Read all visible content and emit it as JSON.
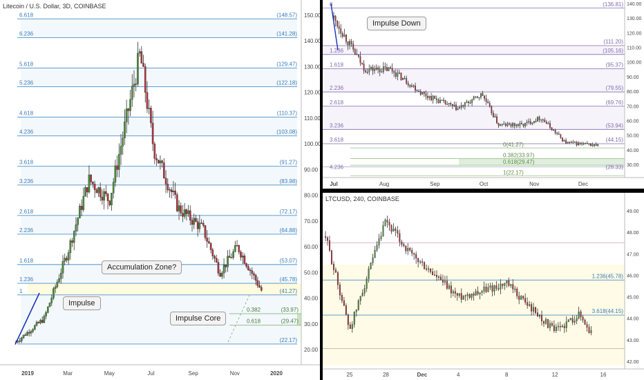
{
  "charts": {
    "left": {
      "title": "Litecoin / U.S. Dollar, 3D, COINBASE",
      "y_ticks": [
        20,
        30,
        40,
        50,
        60,
        70,
        80,
        90,
        100,
        110,
        120,
        130,
        140,
        150
      ],
      "x_labels": [
        "2019",
        "Mar",
        "May",
        "Jul",
        "Sep",
        "Nov",
        "2020"
      ],
      "fib_levels": [
        {
          "ratio": "6.618",
          "value": "148.57"
        },
        {
          "ratio": "6.236",
          "value": "141.28"
        },
        {
          "ratio": "5.618",
          "value": "129.47"
        },
        {
          "ratio": "5.236",
          "value": "122.18"
        },
        {
          "ratio": "4.618",
          "value": "110.37"
        },
        {
          "ratio": "4.236",
          "value": "103.08"
        },
        {
          "ratio": "3.618",
          "value": "91.27"
        },
        {
          "ratio": "3.236",
          "value": "83.98"
        },
        {
          "ratio": "2.618",
          "value": "72.17"
        },
        {
          "ratio": "2.236",
          "value": "64.88"
        },
        {
          "ratio": "1.618",
          "value": "53.07"
        },
        {
          "ratio": "1.236",
          "value": "45.78"
        },
        {
          "ratio": "1",
          "value": "41.27"
        },
        {
          "ratio": "0",
          "value": "22.17"
        }
      ],
      "retrace_levels": [
        {
          "ratio": "0.382",
          "value": "33.97"
        },
        {
          "ratio": "0.618",
          "value": "29.47"
        }
      ],
      "callouts": {
        "accumulation": "Accumulation Zone?",
        "impulse": "Impulse",
        "core": "Impulse Core"
      }
    },
    "top_right": {
      "y_ticks": [
        30,
        40,
        50,
        60,
        70,
        80,
        90,
        100,
        110,
        120,
        130,
        140
      ],
      "x_labels": [
        "Jul",
        "Aug",
        "Sep",
        "Oct",
        "Nov",
        "Dec"
      ],
      "fib_levels": [
        {
          "ratio": "0",
          "value": "136.81"
        },
        {
          "ratio": "",
          "value": "111.20"
        },
        {
          "ratio": "1.236",
          "value": "105.16"
        },
        {
          "ratio": "1.618",
          "value": "95.37"
        },
        {
          "ratio": "2.236",
          "value": "79.55"
        },
        {
          "ratio": "2.618",
          "value": "69.76"
        },
        {
          "ratio": "3.236",
          "value": "53.94"
        },
        {
          "ratio": "3.618",
          "value": "44.15"
        }
      ],
      "inner_levels": [
        {
          "ratio": "0",
          "value": "41.27"
        },
        {
          "ratio": "0.382",
          "value": "33.97"
        },
        {
          "ratio": "0.618",
          "value": "29.47"
        },
        {
          "ratio": "1",
          "value": "22.17"
        }
      ],
      "extra_level": {
        "ratio": "4.236",
        "value": "28.33"
      },
      "callout": "Impulse Down"
    },
    "bottom_right": {
      "title": "LTCUSD, 240, COINBASE",
      "y_ticks": [
        42.0,
        43.0,
        44.0,
        45.0,
        46.0,
        47.0,
        48.0,
        49.0
      ],
      "x_labels": [
        "25",
        "28",
        "Dec",
        "4",
        "8",
        "12",
        "16"
      ],
      "levels": [
        {
          "ratio": "1.236",
          "value": "45.78"
        },
        {
          "ratio": "3.618",
          "value": "44.15"
        }
      ]
    }
  },
  "chart_data": [
    {
      "type": "candlestick",
      "title": "Litecoin / U.S. Dollar, 3D, COINBASE",
      "x_range": [
        "2018-12",
        "2020-01"
      ],
      "ylim": [
        15,
        153
      ],
      "key_points": [
        {
          "date": "2018-12-15",
          "price": 23
        },
        {
          "date": "2019-01-25",
          "price": 32
        },
        {
          "date": "2019-03-01",
          "price": 58
        },
        {
          "date": "2019-04-01",
          "price": 86
        },
        {
          "date": "2019-05-01",
          "price": 78
        },
        {
          "date": "2019-06-15",
          "price": 135
        },
        {
          "date": "2019-07-05",
          "price": 98
        },
        {
          "date": "2019-08-10",
          "price": 75
        },
        {
          "date": "2019-09-15",
          "price": 67
        },
        {
          "date": "2019-10-10",
          "price": 50
        },
        {
          "date": "2019-11-05",
          "price": 60
        },
        {
          "date": "2019-12-10",
          "price": 43
        }
      ]
    },
    {
      "type": "candlestick",
      "x_range": [
        "2019-07",
        "2019-12"
      ],
      "ylim": [
        22,
        143
      ],
      "key_points": [
        {
          "date": "2019-07-01",
          "price": 130
        },
        {
          "date": "2019-07-20",
          "price": 95
        },
        {
          "date": "2019-08-05",
          "price": 95
        },
        {
          "date": "2019-08-25",
          "price": 78
        },
        {
          "date": "2019-09-15",
          "price": 68
        },
        {
          "date": "2019-09-30",
          "price": 78
        },
        {
          "date": "2019-10-10",
          "price": 57
        },
        {
          "date": "2019-10-25",
          "price": 57
        },
        {
          "date": "2019-11-05",
          "price": 62
        },
        {
          "date": "2019-11-20",
          "price": 45
        },
        {
          "date": "2019-12-10",
          "price": 43
        }
      ]
    },
    {
      "type": "candlestick",
      "title": "LTCUSD, 240, COINBASE",
      "x_range": [
        "2019-11-23",
        "2019-12-16"
      ],
      "ylim": [
        41.7,
        49.9
      ],
      "key_points": [
        {
          "date": "2019-11-23",
          "price": 47.8
        },
        {
          "date": "2019-11-25",
          "price": 43.5
        },
        {
          "date": "2019-11-28",
          "price": 48.5
        },
        {
          "date": "2019-11-30",
          "price": 47.0
        },
        {
          "date": "2019-12-04",
          "price": 45.0
        },
        {
          "date": "2019-12-08",
          "price": 45.6
        },
        {
          "date": "2019-12-12",
          "price": 43.4
        },
        {
          "date": "2019-12-14",
          "price": 44.2
        },
        {
          "date": "2019-12-15",
          "price": 43.3
        }
      ]
    }
  ]
}
